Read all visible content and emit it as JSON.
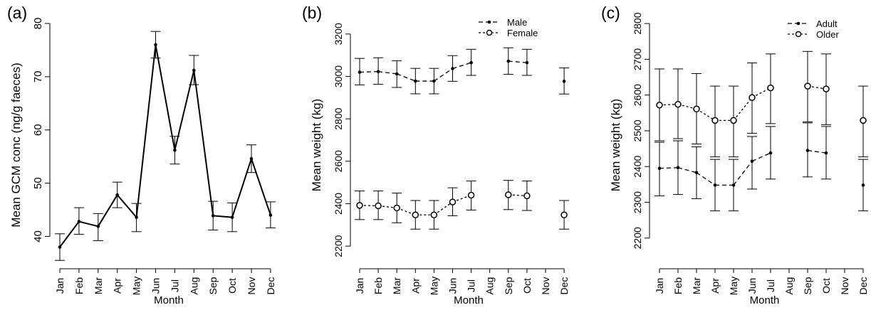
{
  "panels": [
    {
      "letter": "(a)"
    },
    {
      "letter": "(b)"
    },
    {
      "letter": "(c)"
    }
  ],
  "chart_data": [
    {
      "type": "line",
      "panel_label": "(a)",
      "xlabel": "Month",
      "ylabel": "Mean GCM conc (ng/g faeces)",
      "categories": [
        "Jan",
        "Feb",
        "Mar",
        "Apr",
        "May",
        "Jun",
        "Jul",
        "Aug",
        "Sep",
        "Oct",
        "Nov",
        "Dec"
      ],
      "ylim": [
        35,
        82
      ],
      "yticks": [
        40,
        50,
        60,
        70,
        80
      ],
      "series": [
        {
          "style": "solid",
          "values": [
            38,
            42.8,
            41.9,
            47.8,
            43.6,
            76,
            56.2,
            71.2,
            43.9,
            43.6,
            54.6,
            44
          ],
          "err_low": [
            35.5,
            40.4,
            39.2,
            45.4,
            40.9,
            73.5,
            53.6,
            68.5,
            41.2,
            40.9,
            52,
            41.6
          ],
          "err_high": [
            40.5,
            45.4,
            44.3,
            50.2,
            46.2,
            78.5,
            58.8,
            74,
            46.6,
            46.3,
            57.2,
            46.5
          ],
          "lines": "solid"
        }
      ],
      "grid": false
    },
    {
      "type": "line",
      "panel_label": "(b)",
      "xlabel": "Month",
      "ylabel": "Mean weight (kg)",
      "categories": [
        "Jan",
        "Feb",
        "Mar",
        "Apr",
        "May",
        "Jun",
        "Jul",
        "Aug",
        "Sep",
        "Oct",
        "Nov",
        "Dec"
      ],
      "ylim": [
        2120,
        3300
      ],
      "yticks": [
        2200,
        2400,
        2600,
        2800,
        3000,
        3200
      ],
      "legend_position": "top-right",
      "series": [
        {
          "name": "Male",
          "marker": "filled",
          "values": [
            3020,
            3023,
            3012,
            2978,
            2978,
            3037,
            3065,
            null,
            3072,
            3065,
            null,
            2977
          ],
          "err_low": [
            2960,
            2963,
            2948,
            2918,
            2918,
            2977,
            3005,
            null,
            3010,
            3005,
            null,
            2917
          ],
          "err_high": [
            3085,
            3088,
            3074,
            3038,
            3038,
            3098,
            3128,
            null,
            3135,
            3128,
            null,
            3040
          ]
        },
        {
          "name": "Female",
          "marker": "open",
          "values": [
            2392,
            2390,
            2380,
            2347,
            2347,
            2408,
            2440,
            null,
            2442,
            2437,
            null,
            2347
          ],
          "err_low": [
            2325,
            2325,
            2310,
            2280,
            2280,
            2343,
            2370,
            null,
            2372,
            2368,
            null,
            2280
          ],
          "err_high": [
            2460,
            2460,
            2450,
            2415,
            2415,
            2475,
            2507,
            null,
            2510,
            2507,
            null,
            2415
          ]
        }
      ],
      "grid": false
    },
    {
      "type": "line",
      "panel_label": "(c)",
      "xlabel": "Month",
      "ylabel": "Mean weight (kg)",
      "categories": [
        "Jan",
        "Feb",
        "Mar",
        "Apr",
        "May",
        "Jun",
        "Jul",
        "Aug",
        "Sep",
        "Oct",
        "Nov",
        "Dec"
      ],
      "ylim": [
        2130,
        2830
      ],
      "yticks": [
        2200,
        2300,
        2400,
        2500,
        2600,
        2700,
        2800
      ],
      "legend_position": "top-right",
      "series": [
        {
          "name": "Adult",
          "marker": "filled",
          "values": [
            2395,
            2397,
            2383,
            2348,
            2348,
            2415,
            2438,
            null,
            2445,
            2438,
            null,
            2348
          ],
          "err_low": [
            2318,
            2322,
            2310,
            2276,
            2276,
            2337,
            2365,
            null,
            2371,
            2365,
            null,
            2276
          ],
          "err_high": [
            2468,
            2472,
            2455,
            2420,
            2420,
            2484,
            2512,
            null,
            2522,
            2512,
            null,
            2420
          ]
        },
        {
          "name": "Older",
          "marker": "open",
          "values": [
            2572,
            2574,
            2561,
            2529,
            2529,
            2593,
            2620,
            null,
            2625,
            2617,
            null,
            2529
          ],
          "err_low": [
            2472,
            2478,
            2463,
            2427,
            2427,
            2493,
            2520,
            null,
            2525,
            2517,
            null,
            2427
          ],
          "err_high": [
            2673,
            2673,
            2660,
            2625,
            2625,
            2690,
            2715,
            null,
            2722,
            2715,
            null,
            2625
          ]
        }
      ],
      "grid": false
    }
  ]
}
